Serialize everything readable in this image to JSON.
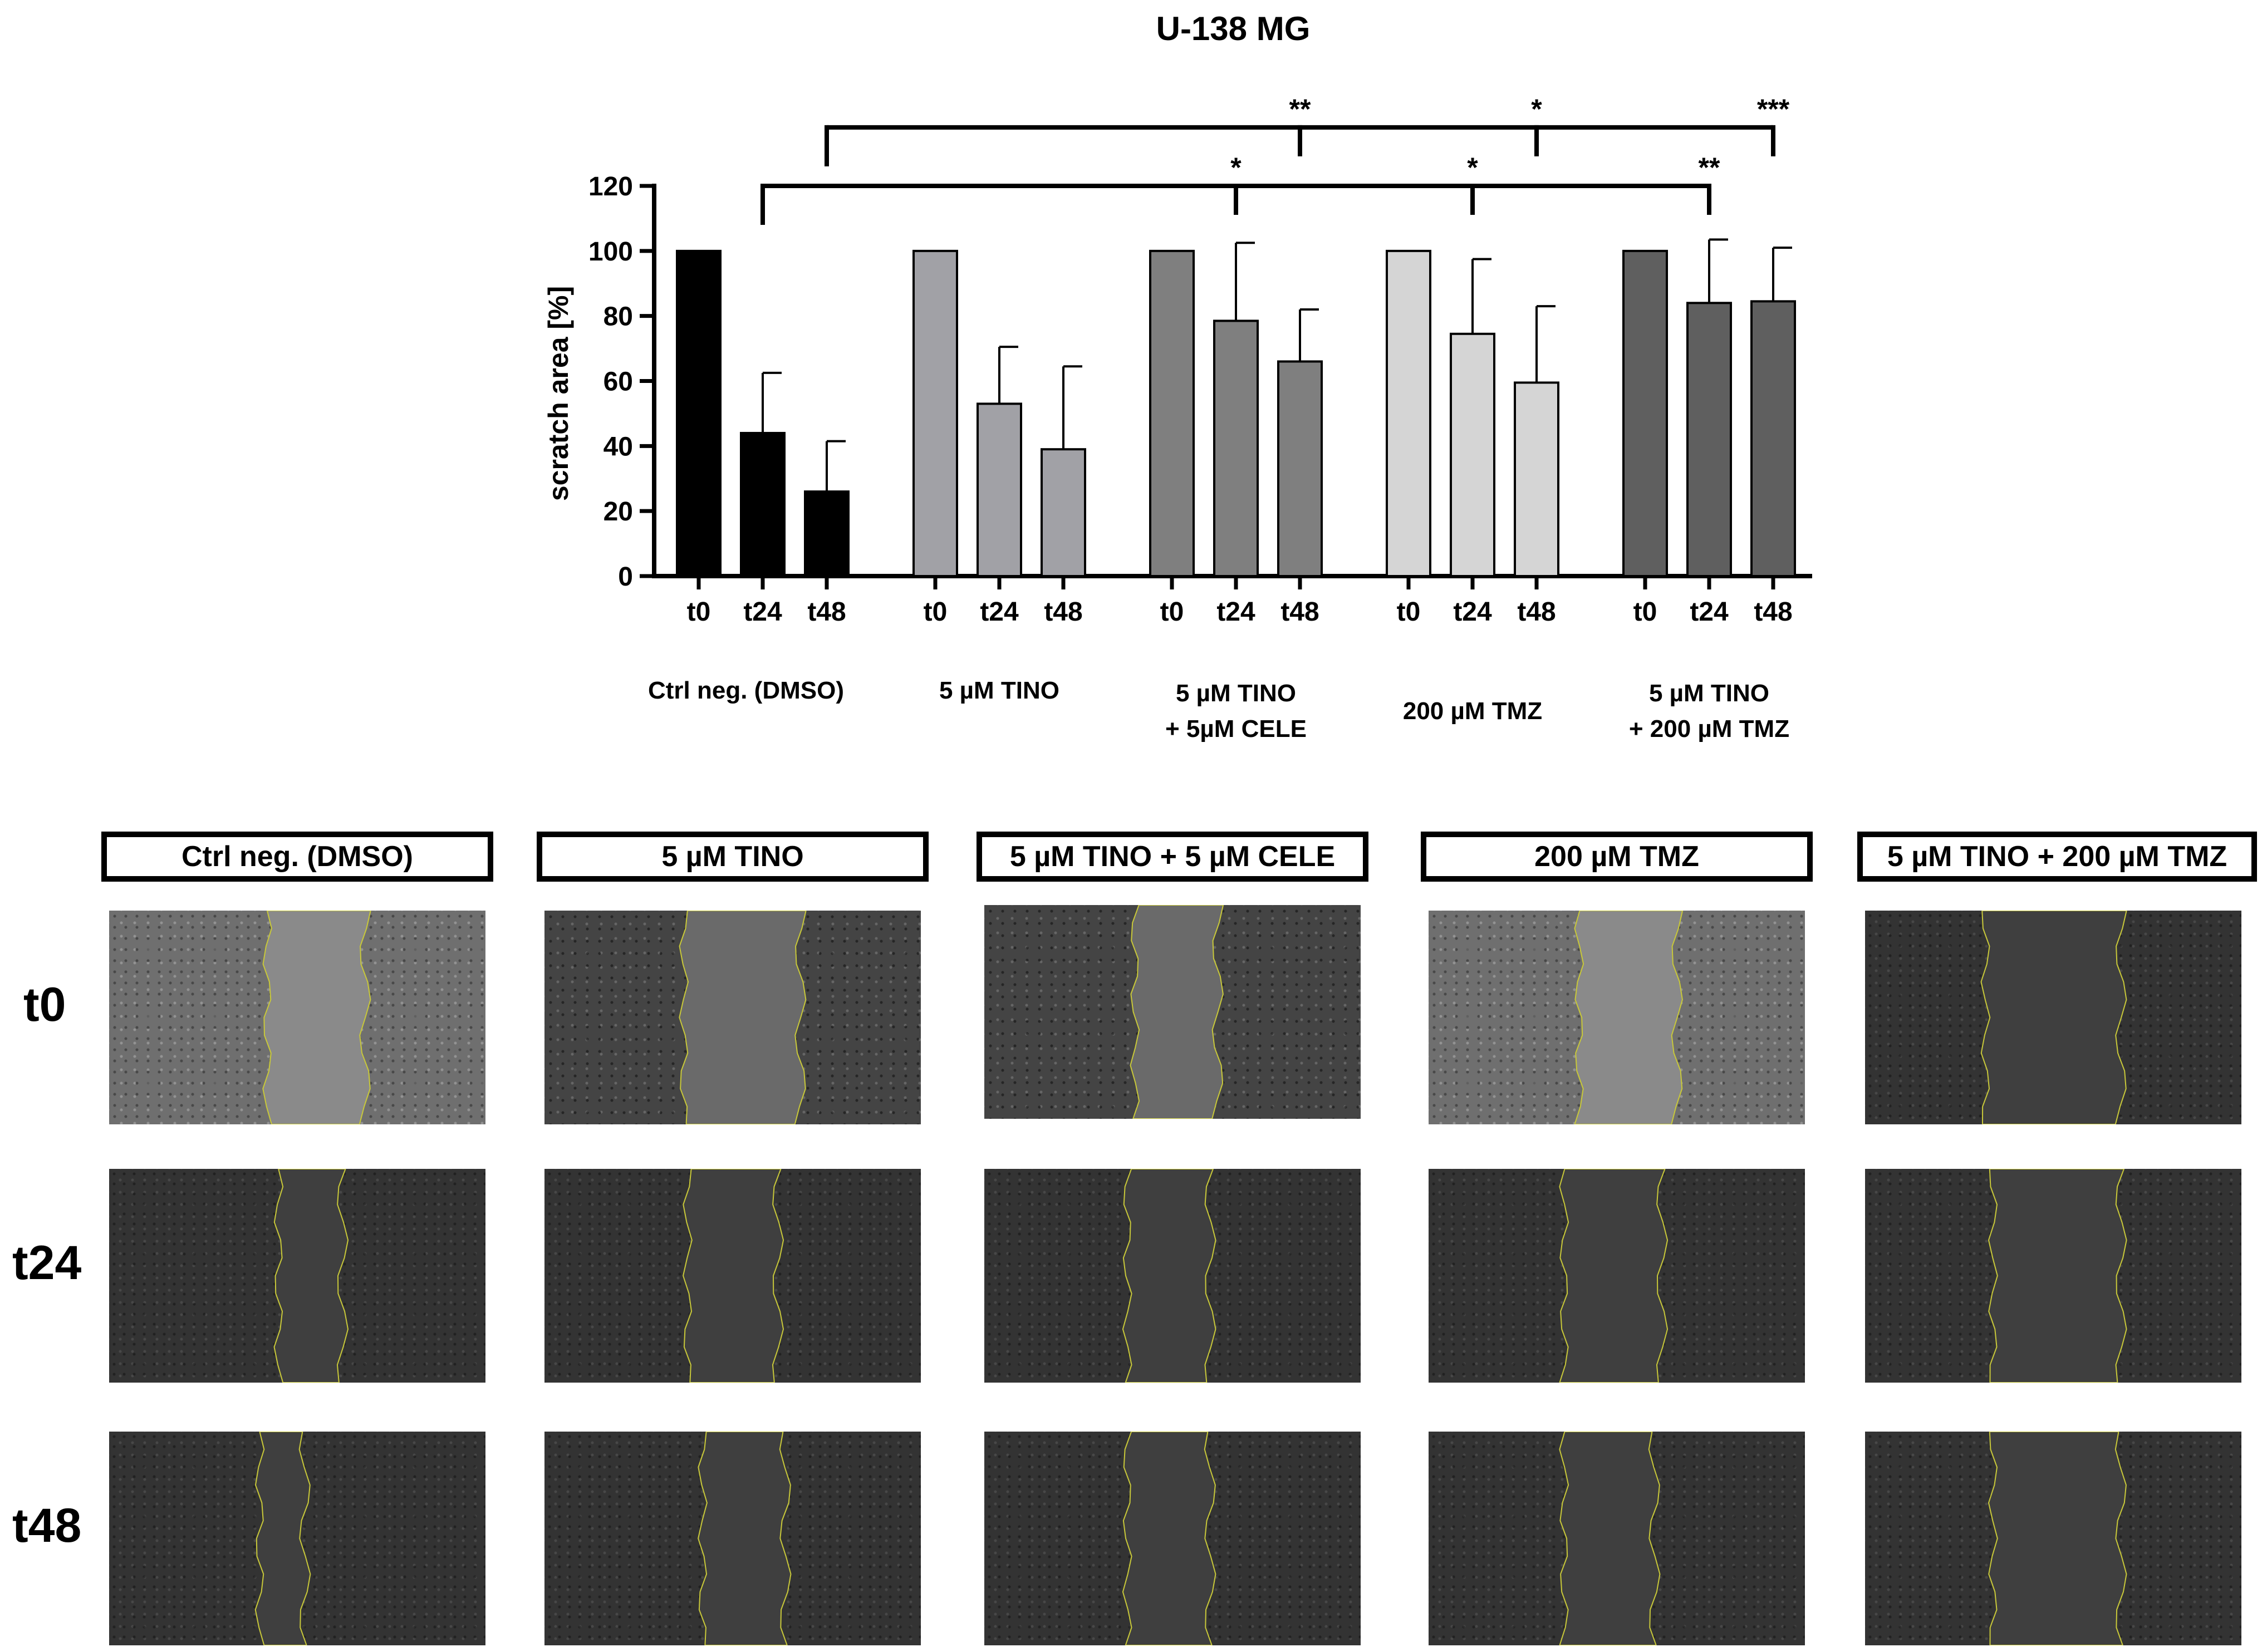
{
  "chart_data": {
    "type": "bar",
    "title": "U-138 MG",
    "ylabel": "scratch area [%]",
    "ylim": [
      0,
      120
    ],
    "yticks": [
      0,
      20,
      40,
      60,
      80,
      100,
      120
    ],
    "grid": false,
    "time_points": [
      "t0",
      "t24",
      "t48"
    ],
    "groups": [
      {
        "name": "Ctrl neg. (DMSO)",
        "label_lines": [
          "Ctrl neg. (DMSO)"
        ],
        "color": "#000000",
        "values": [
          100,
          44,
          26
        ],
        "errors": [
          0,
          18.5,
          15.5
        ]
      },
      {
        "name": "5 µM TINO",
        "label_lines": [
          "5 µM TINO"
        ],
        "color": "#a1a1a6",
        "values": [
          100,
          53,
          39
        ],
        "errors": [
          0,
          17.5,
          25.5
        ]
      },
      {
        "name": "5 µM TINO + 5µM CELE",
        "label_lines": [
          "5 µM TINO",
          "+ 5µM CELE"
        ],
        "color": "#7f7f7f",
        "values": [
          100,
          78.5,
          66
        ],
        "errors": [
          0,
          24,
          16
        ]
      },
      {
        "name": "200 µM TMZ",
        "label_lines": [
          "200 µM TMZ"
        ],
        "color": "#d5d5d5",
        "values": [
          100,
          74.5,
          59.5
        ],
        "errors": [
          0,
          23,
          23.5
        ]
      },
      {
        "name": "5 µM TINO + 200 µM TMZ",
        "label_lines": [
          "5 µM TINO",
          "+ 200 µM TMZ"
        ],
        "color": "#5f5f5f",
        "values": [
          100,
          84,
          84.5
        ],
        "errors": [
          0,
          19.5,
          16.5
        ]
      }
    ],
    "significance": [
      {
        "from": {
          "group": 0,
          "time": 1
        },
        "y": 120,
        "marks": [
          {
            "group": 2,
            "time": 1,
            "label": "*"
          },
          {
            "group": 3,
            "time": 1,
            "label": "*"
          },
          {
            "group": 4,
            "time": 1,
            "label": "**"
          }
        ]
      },
      {
        "from": {
          "group": 0,
          "time": 2
        },
        "y": 138,
        "marks": [
          {
            "group": 2,
            "time": 2,
            "label": "**"
          },
          {
            "group": 3,
            "time": 2,
            "label": "*"
          },
          {
            "group": 4,
            "time": 2,
            "label": "***"
          }
        ]
      }
    ]
  },
  "images": {
    "column_labels": [
      "Ctrl neg. (DMSO)",
      "5 µM TINO",
      "5 µM TINO + 5 µM CELE",
      "200 µM TMZ",
      "5 µM TINO + 200 µM TMZ"
    ],
    "row_labels": [
      "t0",
      "t24",
      "t48"
    ]
  }
}
